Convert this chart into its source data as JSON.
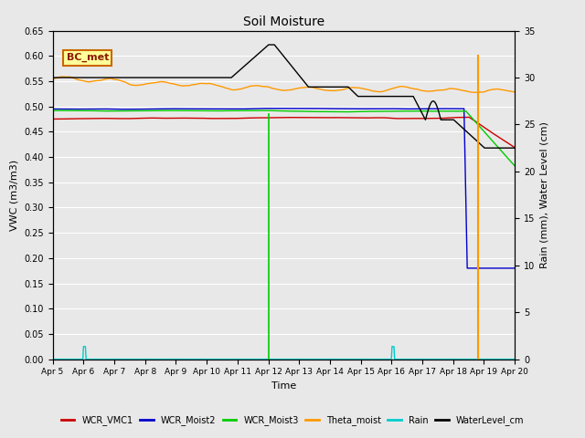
{
  "title": "Soil Moisture",
  "ylabel_left": "VWC (m3/m3)",
  "ylabel_right": "Rain (mm), Water Level (cm)",
  "xlabel": "Time",
  "ylim_left": [
    0.0,
    0.65
  ],
  "ylim_right": [
    0,
    35
  ],
  "background_color": "#e8e8e8",
  "bc_met_label": "BC_met",
  "legend_entries": [
    "WCR_VMC1",
    "WCR_Moist2",
    "WCR_Moist3",
    "Theta_moist",
    "Rain",
    "WaterLevel_cm"
  ],
  "legend_colors": [
    "#cc0000",
    "#0000cc",
    "#00cc00",
    "#ff9900",
    "#00cccc",
    "#000000"
  ]
}
